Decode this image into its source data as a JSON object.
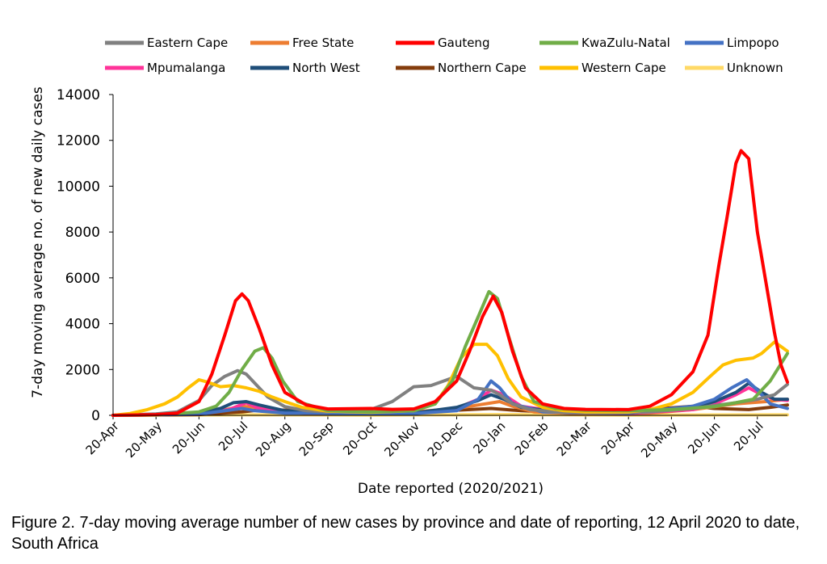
{
  "caption": "Figure 2. 7-day moving average number of new cases by province and date of reporting, 12 April 2020 to date, South Africa",
  "chart_data": {
    "type": "line",
    "xlabel": "Date reported (2020/2021)",
    "ylabel": "7-day moving average no. of new daily cases",
    "ylim": [
      0,
      14000
    ],
    "yticks": [
      0,
      2000,
      4000,
      6000,
      8000,
      10000,
      12000,
      14000
    ],
    "y_tick_labels": [
      "0",
      "2000",
      "4000",
      "6000",
      "8000",
      "10000",
      "12000",
      "14000"
    ],
    "x_tick_labels": [
      "20-Apr",
      "20-May",
      "20-Jun",
      "20-Jul",
      "20-Aug",
      "20-Sep",
      "20-Oct",
      "20-Nov",
      "20-Dec",
      "20-Jan",
      "20-Feb",
      "20-Mar",
      "20-Apr",
      "20-May",
      "20-Jun",
      "20-Jul"
    ],
    "x_tick_index": [
      0,
      1,
      2,
      3,
      4,
      5,
      6,
      7,
      8,
      9,
      10,
      11,
      12,
      13,
      14,
      15
    ],
    "x_range": [
      0,
      15.7
    ],
    "x_unit": "months since 20-Apr-2020",
    "grid": false,
    "legend_position": "top",
    "series": [
      {
        "name": "Eastern Cape",
        "color": "#808080",
        "points": [
          [
            0,
            0
          ],
          [
            1,
            60
          ],
          [
            1.5,
            150
          ],
          [
            2,
            650
          ],
          [
            2.3,
            1300
          ],
          [
            2.6,
            1700
          ],
          [
            2.9,
            1950
          ],
          [
            3.1,
            1800
          ],
          [
            3.3,
            1400
          ],
          [
            3.6,
            800
          ],
          [
            4,
            380
          ],
          [
            4.5,
            200
          ],
          [
            5,
            150
          ],
          [
            6,
            250
          ],
          [
            6.5,
            600
          ],
          [
            7,
            1250
          ],
          [
            7.4,
            1300
          ],
          [
            7.7,
            1500
          ],
          [
            8,
            1700
          ],
          [
            8.4,
            1200
          ],
          [
            8.8,
            1100
          ],
          [
            9,
            900
          ],
          [
            9.3,
            500
          ],
          [
            9.7,
            250
          ],
          [
            10.5,
            120
          ],
          [
            11.5,
            90
          ],
          [
            12.5,
            150
          ],
          [
            13.5,
            300
          ],
          [
            14.5,
            550
          ],
          [
            15,
            700
          ],
          [
            15.4,
            900
          ],
          [
            15.7,
            1350
          ]
        ]
      },
      {
        "name": "Free State",
        "color": "#ED7D31",
        "points": [
          [
            0,
            0
          ],
          [
            1,
            20
          ],
          [
            2,
            80
          ],
          [
            2.5,
            200
          ],
          [
            3,
            400
          ],
          [
            3.3,
            350
          ],
          [
            3.7,
            200
          ],
          [
            4.5,
            80
          ],
          [
            6,
            60
          ],
          [
            7,
            150
          ],
          [
            8,
            300
          ],
          [
            8.5,
            450
          ],
          [
            9,
            600
          ],
          [
            9.3,
            400
          ],
          [
            9.8,
            150
          ],
          [
            11,
            60
          ],
          [
            12.5,
            100
          ],
          [
            13.5,
            250
          ],
          [
            14.5,
            500
          ],
          [
            15.2,
            600
          ],
          [
            15.7,
            700
          ]
        ]
      },
      {
        "name": "Gauteng",
        "color": "#FF0000",
        "points": [
          [
            0,
            0
          ],
          [
            1,
            30
          ],
          [
            1.5,
            100
          ],
          [
            2,
            600
          ],
          [
            2.3,
            1800
          ],
          [
            2.6,
            3500
          ],
          [
            2.85,
            5000
          ],
          [
            3,
            5300
          ],
          [
            3.15,
            5000
          ],
          [
            3.4,
            3800
          ],
          [
            3.7,
            2200
          ],
          [
            4,
            1000
          ],
          [
            4.5,
            450
          ],
          [
            5,
            280
          ],
          [
            6,
            300
          ],
          [
            6.5,
            260
          ],
          [
            7,
            280
          ],
          [
            7.5,
            600
          ],
          [
            8,
            1500
          ],
          [
            8.3,
            2800
          ],
          [
            8.6,
            4300
          ],
          [
            8.85,
            5200
          ],
          [
            9.05,
            4500
          ],
          [
            9.3,
            2800
          ],
          [
            9.6,
            1200
          ],
          [
            10,
            500
          ],
          [
            10.5,
            300
          ],
          [
            11,
            260
          ],
          [
            12,
            250
          ],
          [
            12.5,
            400
          ],
          [
            13,
            900
          ],
          [
            13.5,
            1900
          ],
          [
            13.85,
            3500
          ],
          [
            14.1,
            6500
          ],
          [
            14.3,
            8700
          ],
          [
            14.5,
            11000
          ],
          [
            14.62,
            11550
          ],
          [
            14.8,
            11200
          ],
          [
            15,
            8000
          ],
          [
            15.2,
            5800
          ],
          [
            15.4,
            3600
          ],
          [
            15.55,
            2200
          ],
          [
            15.7,
            1450
          ]
        ]
      },
      {
        "name": "KwaZulu-Natal",
        "color": "#70AD47",
        "points": [
          [
            0,
            0
          ],
          [
            1,
            20
          ],
          [
            2,
            150
          ],
          [
            2.4,
            400
          ],
          [
            2.7,
            1000
          ],
          [
            3,
            2000
          ],
          [
            3.3,
            2800
          ],
          [
            3.5,
            2950
          ],
          [
            3.7,
            2500
          ],
          [
            3.95,
            1500
          ],
          [
            4.3,
            600
          ],
          [
            5,
            200
          ],
          [
            6,
            150
          ],
          [
            7,
            200
          ],
          [
            7.5,
            500
          ],
          [
            7.9,
            1500
          ],
          [
            8.2,
            3000
          ],
          [
            8.5,
            4300
          ],
          [
            8.75,
            5400
          ],
          [
            8.95,
            5100
          ],
          [
            9.2,
            3500
          ],
          [
            9.5,
            1700
          ],
          [
            9.8,
            600
          ],
          [
            10.3,
            300
          ],
          [
            11,
            220
          ],
          [
            12,
            200
          ],
          [
            13,
            250
          ],
          [
            14,
            380
          ],
          [
            14.5,
            550
          ],
          [
            14.9,
            700
          ],
          [
            15.3,
            1500
          ],
          [
            15.7,
            2700
          ]
        ]
      },
      {
        "name": "Limpopo",
        "color": "#4472C4",
        "points": [
          [
            0,
            0
          ],
          [
            2,
            50
          ],
          [
            3,
            300
          ],
          [
            3.3,
            200
          ],
          [
            4,
            100
          ],
          [
            7,
            80
          ],
          [
            8,
            200
          ],
          [
            8.5,
            700
          ],
          [
            8.8,
            1500
          ],
          [
            9,
            1200
          ],
          [
            9.3,
            500
          ],
          [
            10,
            150
          ],
          [
            12,
            100
          ],
          [
            13.5,
            400
          ],
          [
            14,
            700
          ],
          [
            14.4,
            1200
          ],
          [
            14.75,
            1550
          ],
          [
            15,
            1100
          ],
          [
            15.3,
            500
          ],
          [
            15.7,
            300
          ]
        ]
      },
      {
        "name": "Mpumalanga",
        "color": "#FF3399",
        "points": [
          [
            0,
            0
          ],
          [
            2,
            50
          ],
          [
            2.7,
            250
          ],
          [
            3.1,
            550
          ],
          [
            3.4,
            300
          ],
          [
            4,
            120
          ],
          [
            7,
            80
          ],
          [
            8,
            300
          ],
          [
            8.5,
            700
          ],
          [
            8.8,
            1100
          ],
          [
            9.1,
            900
          ],
          [
            9.5,
            400
          ],
          [
            10.5,
            120
          ],
          [
            12,
            80
          ],
          [
            13.5,
            250
          ],
          [
            14,
            500
          ],
          [
            14.5,
            900
          ],
          [
            14.8,
            1200
          ],
          [
            15.1,
            900
          ],
          [
            15.4,
            700
          ],
          [
            15.7,
            650
          ]
        ]
      },
      {
        "name": "North West",
        "color": "#1F4E79",
        "points": [
          [
            0,
            0
          ],
          [
            2,
            80
          ],
          [
            2.5,
            300
          ],
          [
            2.8,
            550
          ],
          [
            3.1,
            600
          ],
          [
            3.4,
            450
          ],
          [
            4,
            200
          ],
          [
            5,
            100
          ],
          [
            7,
            100
          ],
          [
            8,
            350
          ],
          [
            8.5,
            650
          ],
          [
            8.8,
            900
          ],
          [
            9.1,
            700
          ],
          [
            9.5,
            350
          ],
          [
            10.5,
            120
          ],
          [
            12,
            100
          ],
          [
            13.5,
            350
          ],
          [
            14,
            600
          ],
          [
            14.5,
            1000
          ],
          [
            14.8,
            1400
          ],
          [
            15.1,
            1000
          ],
          [
            15.4,
            700
          ],
          [
            15.7,
            700
          ]
        ]
      },
      {
        "name": "Northern Cape",
        "color": "#843C0C",
        "points": [
          [
            0,
            0
          ],
          [
            2,
            30
          ],
          [
            3,
            150
          ],
          [
            3.5,
            250
          ],
          [
            4.5,
            200
          ],
          [
            5.5,
            150
          ],
          [
            6.5,
            120
          ],
          [
            7.5,
            180
          ],
          [
            8.3,
            250
          ],
          [
            8.8,
            300
          ],
          [
            9.5,
            200
          ],
          [
            10.5,
            120
          ],
          [
            12,
            150
          ],
          [
            12.8,
            300
          ],
          [
            13.5,
            400
          ],
          [
            14,
            300
          ],
          [
            14.8,
            250
          ],
          [
            15.3,
            350
          ],
          [
            15.7,
            450
          ]
        ]
      },
      {
        "name": "Western Cape",
        "color": "#FFC000",
        "points": [
          [
            0,
            0
          ],
          [
            0.4,
            80
          ],
          [
            0.8,
            250
          ],
          [
            1.2,
            500
          ],
          [
            1.5,
            800
          ],
          [
            1.75,
            1200
          ],
          [
            2,
            1550
          ],
          [
            2.2,
            1450
          ],
          [
            2.5,
            1250
          ],
          [
            2.8,
            1300
          ],
          [
            3.1,
            1200
          ],
          [
            3.4,
            1050
          ],
          [
            3.7,
            800
          ],
          [
            4,
            600
          ],
          [
            4.4,
            350
          ],
          [
            5,
            180
          ],
          [
            6,
            130
          ],
          [
            7,
            200
          ],
          [
            7.5,
            500
          ],
          [
            7.8,
            1300
          ],
          [
            8.1,
            2500
          ],
          [
            8.4,
            3100
          ],
          [
            8.7,
            3100
          ],
          [
            8.95,
            2600
          ],
          [
            9.2,
            1600
          ],
          [
            9.5,
            800
          ],
          [
            10,
            350
          ],
          [
            10.5,
            200
          ],
          [
            11,
            150
          ],
          [
            12,
            150
          ],
          [
            12.5,
            250
          ],
          [
            13,
            500
          ],
          [
            13.5,
            1000
          ],
          [
            13.9,
            1700
          ],
          [
            14.2,
            2200
          ],
          [
            14.5,
            2400
          ],
          [
            14.9,
            2500
          ],
          [
            15.1,
            2700
          ],
          [
            15.4,
            3200
          ],
          [
            15.55,
            3000
          ],
          [
            15.7,
            2800
          ]
        ]
      },
      {
        "name": "Unknown",
        "color": "#FFD966",
        "points": [
          [
            0,
            0
          ],
          [
            3,
            20
          ],
          [
            6,
            10
          ],
          [
            9,
            30
          ],
          [
            12,
            10
          ],
          [
            15.7,
            20
          ]
        ]
      }
    ]
  }
}
